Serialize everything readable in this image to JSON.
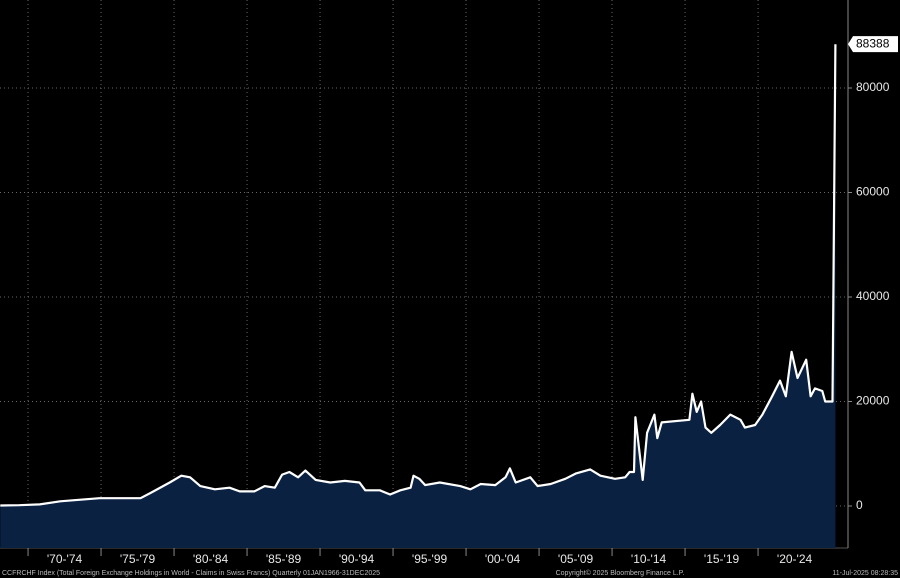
{
  "chart_data": {
    "type": "area",
    "x": [
      1968.1,
      1969.4,
      1970.8,
      1972.2,
      1973.6,
      1974.9,
      1975.6,
      1977.7,
      1978.4,
      1979.7,
      1980.5,
      1981.1,
      1981.8,
      1982.8,
      1983.8,
      1984.5,
      1985.5,
      1986.2,
      1986.9,
      1987.4,
      1987.9,
      1988.5,
      1989.0,
      1989.7,
      1990.7,
      1991.7,
      1992.7,
      1993.1,
      1994.1,
      1994.8,
      1995.5,
      1996.2,
      1996.4,
      1996.8,
      1997.2,
      1998.2,
      1999.6,
      2000.3,
      2001.0,
      2002.0,
      2002.7,
      2003.0,
      2003.4,
      2004.4,
      2004.9,
      2005.8,
      2006.8,
      2007.5,
      2008.5,
      2009.2,
      2010.2,
      2010.9,
      2011.2,
      2011.5,
      2011.6,
      2012.1,
      2012.4,
      2012.9,
      2013.1,
      2013.4,
      2015.3,
      2015.5,
      2015.8,
      2016.1,
      2016.4,
      2016.8,
      2017.4,
      2018.1,
      2018.8,
      2019.1,
      2019.8,
      2020.3,
      2020.96,
      2021.5,
      2021.9,
      2022.3,
      2022.7,
      2023.3,
      2023.6,
      2023.9,
      2024.4,
      2024.6,
      2025.1,
      2025.3
    ],
    "values": [
      100,
      150,
      300,
      900,
      1200,
      1500,
      1500,
      1500,
      2500,
      4500,
      5800,
      5500,
      3800,
      3200,
      3500,
      2800,
      2800,
      3800,
      3500,
      6000,
      6500,
      5500,
      6800,
      5000,
      4500,
      4800,
      4500,
      3000,
      3000,
      2200,
      3000,
      3500,
      5800,
      5200,
      4000,
      4500,
      3800,
      3200,
      4200,
      4000,
      5500,
      7200,
      4500,
      5500,
      3800,
      4200,
      5200,
      6200,
      7000,
      5800,
      5200,
      5500,
      6500,
      6500,
      17000,
      5000,
      14000,
      17500,
      13000,
      16000,
      16500,
      21500,
      18000,
      20000,
      15000,
      14000,
      15500,
      17500,
      16500,
      15000,
      15500,
      17500,
      21000,
      24000,
      21000,
      29500,
      24500,
      28000,
      21000,
      22500,
      22000,
      20000,
      20000,
      88388
    ],
    "line_color": "#ffffff",
    "fill_color": "#0a2142",
    "xlim": [
      1968.08,
      2026.16
    ],
    "ylim": [
      -8040,
      96840
    ],
    "yticks": [
      0,
      20000,
      40000,
      60000,
      80000
    ],
    "xticks": [
      {
        "value": 1972.5,
        "label": "'70-'74"
      },
      {
        "value": 1977.5,
        "label": "'75-'79"
      },
      {
        "value": 1982.5,
        "label": "'80-'84"
      },
      {
        "value": 1987.5,
        "label": "'85-'89"
      },
      {
        "value": 1992.5,
        "label": "'90-'94"
      },
      {
        "value": 1997.5,
        "label": "'95-'99"
      },
      {
        "value": 2002.5,
        "label": "'00-'04"
      },
      {
        "value": 2007.5,
        "label": "'05-'09"
      },
      {
        "value": 2012.5,
        "label": "'10-'14"
      },
      {
        "value": 2017.5,
        "label": "'15-'19"
      },
      {
        "value": 2022.5,
        "label": "'20-'24"
      }
    ],
    "grid": true
  },
  "footer": {
    "left": "CCFRCHF Index (Total Foreign Exchange Holdings in World - Claims in Swiss Francs)  Quarterly 01JAN1966-31DEC2025",
    "center": "Copyright© 2025 Bloomberg Finance L.P.",
    "right": "11-Jul-2025 08:28:35"
  }
}
